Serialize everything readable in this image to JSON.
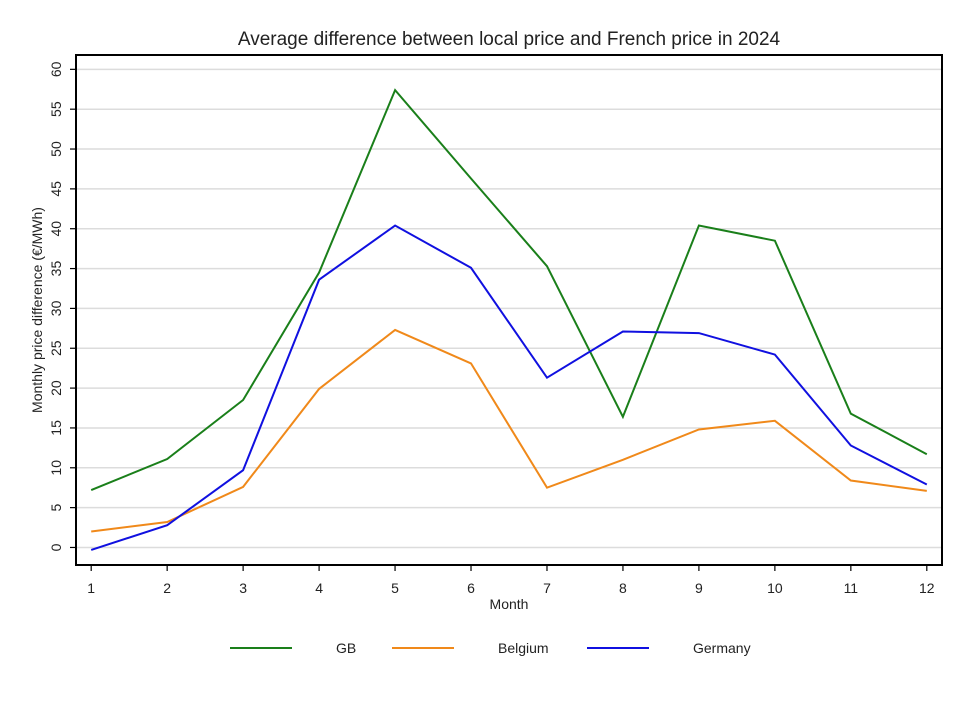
{
  "chart_data": {
    "type": "line",
    "title": "Average difference between local price and French price in 2024",
    "xlabel": "Month",
    "ylabel": "Monthly price difference (€/MWh)",
    "x": [
      1,
      2,
      3,
      4,
      5,
      6,
      7,
      8,
      9,
      10,
      11,
      12
    ],
    "xticks": [
      "1",
      "2",
      "3",
      "4",
      "5",
      "6",
      "7",
      "8",
      "9",
      "10",
      "11",
      "12"
    ],
    "yticks": [
      "0",
      "5",
      "10",
      "15",
      "20",
      "25",
      "30",
      "35",
      "40",
      "45",
      "50",
      "55",
      "60"
    ],
    "xlim": [
      0.8,
      12.2
    ],
    "ylim": [
      -2.2,
      61.8
    ],
    "grid": true,
    "legend_position": "bottom",
    "series": [
      {
        "name": "GB",
        "color": "#1a7f1a",
        "values": [
          7.2,
          11.1,
          18.5,
          34.5,
          57.4,
          46.3,
          35.3,
          16.4,
          40.4,
          38.5,
          16.8,
          11.7
        ]
      },
      {
        "name": "Belgium",
        "color": "#f0891a",
        "values": [
          2.0,
          3.2,
          7.6,
          19.9,
          27.3,
          23.1,
          7.5,
          11.0,
          14.8,
          15.9,
          8.4,
          7.1
        ]
      },
      {
        "name": "Germany",
        "color": "#1010e0",
        "values": [
          -0.3,
          2.8,
          9.7,
          33.6,
          40.4,
          35.1,
          21.3,
          27.1,
          26.9,
          24.2,
          12.8,
          7.9
        ]
      }
    ]
  }
}
